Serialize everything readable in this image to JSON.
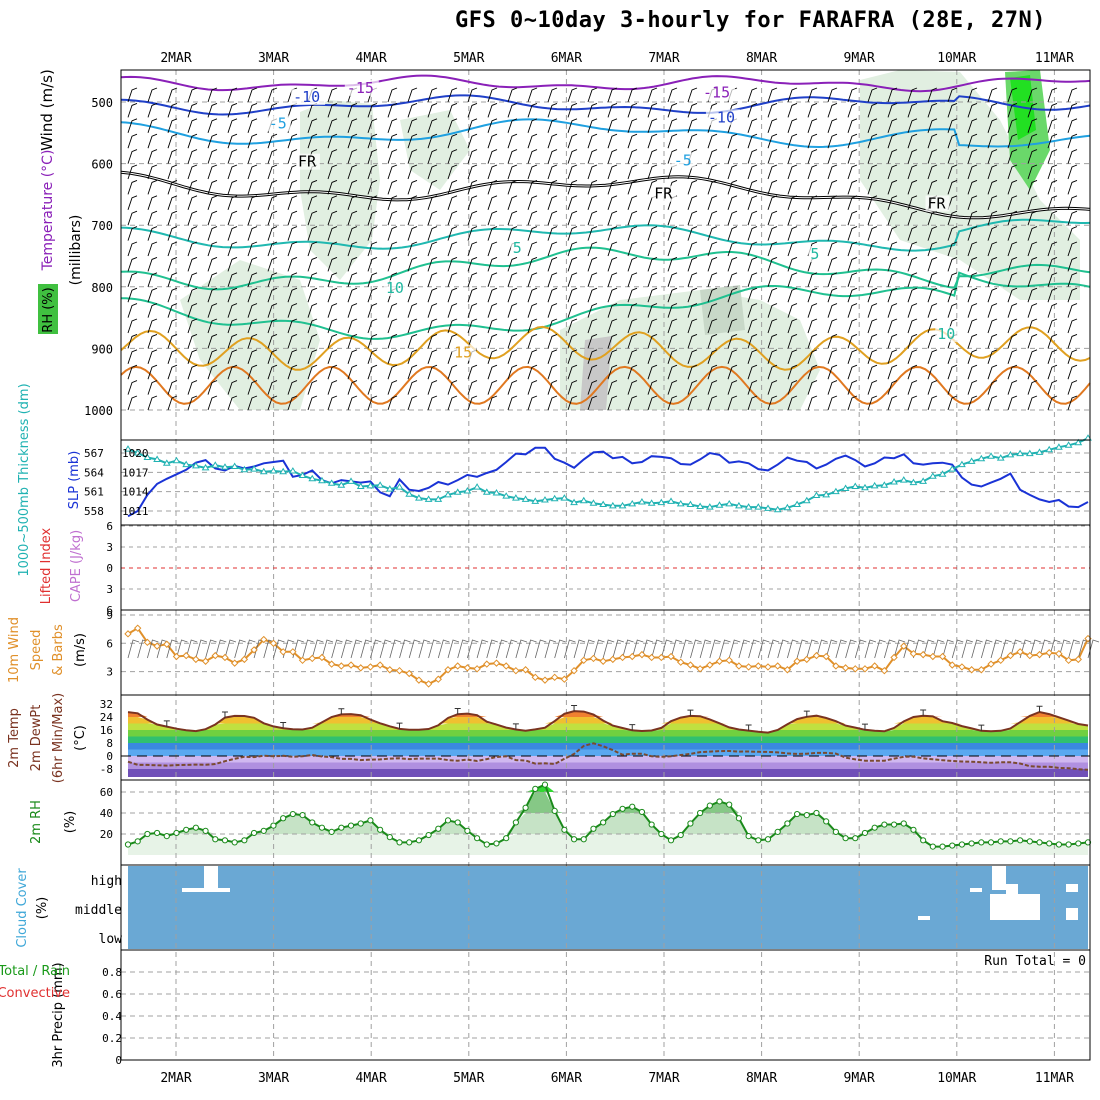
{
  "title": "GFS 0~10day 3-hourly for FARAFRA (28E, 27N)",
  "dates": [
    "2MAR",
    "3MAR",
    "4MAR",
    "5MAR",
    "6MAR",
    "7MAR",
    "8MAR",
    "9MAR",
    "10MAR",
    "11MAR"
  ],
  "run_total_label": "Run Total = 0",
  "colors": {
    "grid": "#a0a0a0",
    "slp": "#1a33d6",
    "thickness": "#20b2b2",
    "wind10": "#e0902a",
    "temp": "#7a3320",
    "dewpt": "#7a4a30",
    "rh": "#1a8a1a",
    "cloud": "#6aa8d4",
    "rh_fill": "#cde8cd",
    "zero_li": "#e03030"
  },
  "chart_data": [
    {
      "type": "contour",
      "panel": "upper_air",
      "ylabel_parts": [
        "Wind (m/s)",
        "Temperature (°C)",
        "RH (%)"
      ],
      "yunit": "(millibars)",
      "yticks": [
        500,
        600,
        700,
        800,
        900,
        1000
      ],
      "contour_labels": [
        {
          "text": "-15",
          "day": 1.75,
          "p": 485
        },
        {
          "text": "-15",
          "day": 5.4,
          "p": 493
        },
        {
          "text": "-10",
          "day": 1.2,
          "p": 500
        },
        {
          "text": "-10",
          "day": 5.45,
          "p": 533
        },
        {
          "text": "-5",
          "day": 0.95,
          "p": 543
        },
        {
          "text": "-5",
          "day": 5.1,
          "p": 603
        },
        {
          "text": "FR",
          "day": 1.25,
          "p": 605
        },
        {
          "text": "FR",
          "day": 4.9,
          "p": 657
        },
        {
          "text": "FR",
          "day": 7.7,
          "p": 673
        },
        {
          "text": "5",
          "day": 3.45,
          "p": 745
        },
        {
          "text": "5",
          "day": 6.5,
          "p": 755
        },
        {
          "text": "10",
          "day": 7.8,
          "p": 885
        },
        {
          "text": "10",
          "day": 2.15,
          "p": 810
        },
        {
          "text": "15",
          "day": 2.85,
          "p": 915
        }
      ]
    },
    {
      "type": "line",
      "panel": "slp_thickness",
      "ylabel_left": "1000~500mb Thickness (dm)",
      "ylabel_right": "SLP (mb)",
      "yticks_left": [
        558,
        561,
        564,
        567
      ],
      "yticks_right": [
        1011,
        1014,
        1017,
        1020
      ],
      "series": [
        {
          "name": "SLP (mb)",
          "values": [
            1010.2,
            1011,
            1013.5,
            1015.2,
            1016,
            1016.7,
            1017.4,
            1018.5,
            1018.9,
            1017.6,
            1017.3,
            1018,
            1017.6,
            1017.9,
            1018.4,
            1018.6,
            1018.8,
            1016.3,
            1016.6,
            1017.3,
            1015.8,
            1015.3,
            1015.8,
            1015.6,
            1015.4,
            1015.6,
            1013.9,
            1013.3,
            1015.9,
            1014.3,
            1014.1,
            1014.6,
            1015.5,
            1015.1,
            1015.8,
            1016.6,
            1016.3,
            1016.9,
            1017.4,
            1018.6,
            1019.9,
            1019.8,
            1020.8,
            1020.8,
            1019.1,
            1018.5,
            1017.7,
            1019,
            1020.1,
            1020.2,
            1019.2,
            1019.4,
            1018.4,
            1018.6,
            1019.5,
            1019.4,
            1019.2,
            1018.3,
            1018.2,
            1019,
            1020,
            1019.7,
            1018.5,
            1018.7,
            1018.4,
            1017.5,
            1017.3,
            1018.2,
            1019.3,
            1018.8,
            1018.6,
            1017.6,
            1018.2,
            1019.1,
            1019.6,
            1018.9,
            1017.9,
            1018.4,
            1019.3,
            1019.2,
            1019.8,
            1018.4,
            1018.2,
            1018.4,
            1018.5,
            1018.2,
            1016.2,
            1015.1,
            1014.8,
            1015.4,
            1016,
            1016.8,
            1014.3,
            1013.5,
            1012.8,
            1012.4,
            1012.7,
            1011.7,
            1011.6,
            1012.4
          ]
        },
        {
          "name": "1000~500mb Thickness (dm)",
          "values": [
            567.6,
            567,
            566.3,
            566,
            565.4,
            565.8,
            565.2,
            565,
            564.7,
            565.1,
            564.8,
            564.9,
            564.4,
            564.5,
            564.1,
            564.2,
            564.1,
            564.2,
            563.5,
            563,
            562.7,
            562.3,
            562,
            562.6,
            561.8,
            561.9,
            562,
            561.4,
            561.7,
            560.6,
            560,
            559.8,
            559.8,
            560.5,
            560.9,
            561.1,
            561.7,
            560.9,
            560.8,
            560.3,
            560,
            559.8,
            559.5,
            559.7,
            559.9,
            560,
            559.3,
            559.6,
            559.2,
            559,
            558.8,
            558.8,
            559.1,
            559.4,
            559.2,
            559.3,
            559.5,
            559.1,
            559,
            558.7,
            558.6,
            558.9,
            559.1,
            558.8,
            558.6,
            558.6,
            558.4,
            558.2,
            558.5,
            559,
            559.6,
            560.4,
            560.5,
            561,
            561.5,
            561.8,
            561.6,
            561.9,
            562,
            562.5,
            562.8,
            562.4,
            562.6,
            563.4,
            563.7,
            564.5,
            565.2,
            565.7,
            566.1,
            566.5,
            566.2,
            566.7,
            566.9,
            566.9,
            567.1,
            567.5,
            567.9,
            568.2,
            568.6,
            569.3
          ]
        }
      ]
    },
    {
      "type": "line",
      "panel": "stability",
      "ylabel_left": "Lifted Index",
      "ylabel_right": "CAPE (J/kg)",
      "yticks": [
        6,
        3,
        0,
        -3,
        -6
      ],
      "yticks_labels": [
        "6",
        "3",
        "0",
        "3",
        "6"
      ],
      "series": []
    },
    {
      "type": "line",
      "panel": "wind10m",
      "ylabel_parts": [
        "10m Wind",
        "Speed",
        "& Barbs",
        "(m/s)"
      ],
      "yticks": [
        3,
        6,
        9
      ],
      "series": [
        {
          "name": "10m Wind Speed",
          "values": [
            7,
            7.6,
            6.1,
            5.7,
            5.9,
            4.6,
            4.7,
            4.3,
            4.1,
            4.7,
            4.5,
            3.9,
            4.3,
            5.3,
            6.4,
            6,
            5.1,
            5.1,
            4.2,
            4.4,
            4.5,
            3.8,
            3.6,
            3.7,
            3.4,
            3.5,
            3.7,
            3.2,
            3.1,
            2.8,
            2.1,
            1.7,
            2.2,
            3.2,
            3.6,
            3.4,
            3.3,
            3.8,
            3.9,
            3.6,
            3.1,
            3.2,
            2.4,
            2.1,
            2.4,
            2.2,
            3.1,
            4.2,
            4.4,
            4.1,
            4.3,
            4.5,
            4.6,
            4.8,
            4.5,
            4.5,
            4.6,
            4,
            3.7,
            3.3,
            3.7,
            4.1,
            4.2,
            3.6,
            3.5,
            3.6,
            3.5,
            3.6,
            3.2,
            4.1,
            4.3,
            4.7,
            4.6,
            3.6,
            3.4,
            3.3,
            3.3,
            3.6,
            3.1,
            4.5,
            5.7,
            4.9,
            4.8,
            4.6,
            4.6,
            3.7,
            3.5,
            3.2,
            3.2,
            3.8,
            4.2,
            4.7,
            5.1,
            4.7,
            4.8,
            5,
            4.9,
            4.2,
            4.3,
            6.5
          ]
        }
      ]
    },
    {
      "type": "area",
      "panel": "temperature",
      "ylabel_parts": [
        "2m Temp",
        "2m DewPt",
        "(6hr Min/Max)"
      ],
      "ylabel_unit": "(°C)",
      "yticks": [
        -8,
        0,
        8,
        16,
        24,
        32
      ],
      "series": [
        {
          "name": "2m Temp",
          "values": [
            27,
            26.3,
            22.4,
            19.4,
            18.1,
            16.8,
            15.9,
            15.3,
            16.5,
            19.4,
            23.6,
            24.7,
            24.6,
            23.5,
            20.1,
            18.2,
            17.1,
            16.5,
            16.3,
            17.4,
            20.7,
            24,
            25.6,
            25.8,
            25.1,
            22.4,
            20.1,
            18.3,
            16.7,
            16.1,
            16.1,
            16.6,
            18.9,
            23.4,
            25.7,
            26.1,
            25.1,
            21.1,
            19.3,
            17.5,
            16.3,
            15.5,
            16.4,
            17.4,
            21.5,
            26,
            27.6,
            27.3,
            25.5,
            21.8,
            18.7,
            17.2,
            15.8,
            15.4,
            15.7,
            17.3,
            21.4,
            23.6,
            24.7,
            24.5,
            22.5,
            20.1,
            17.6,
            16.3,
            15.6,
            14.9,
            14.4,
            16,
            19.5,
            22.7,
            24.1,
            24.8,
            23.4,
            21.4,
            18.7,
            17.5,
            16.1,
            15.5,
            15.2,
            17.3,
            21.3,
            24,
            24.8,
            24.4,
            21.4,
            20.3,
            18.4,
            17,
            15.5,
            15.2,
            15.5,
            16.9,
            20.8,
            24.7,
            27.1,
            25.8,
            23.8,
            21.8,
            19.7,
            18.8
          ]
        },
        {
          "name": "2m DewPt",
          "values": [
            -3.5,
            -5.4,
            -5.5,
            -5.7,
            -5.9,
            -5.6,
            -5.5,
            -5.3,
            -5.4,
            -4.9,
            -3.2,
            -1.7,
            -0.5,
            -0.7,
            0.2,
            -0.2,
            0.1,
            -0.5,
            -0.1,
            0.6,
            -0.3,
            -0.7,
            -1.8,
            -1.8,
            -2.5,
            -2.2,
            -2.1,
            -1.6,
            -1.4,
            -1.9,
            -1.6,
            -1.6,
            -1.6,
            -2.5,
            -2.9,
            -2.2,
            -3.1,
            -1.9,
            -0.6,
            -0.1,
            -2.5,
            -2.8,
            -4.7,
            -4.5,
            -4.9,
            -1.7,
            1.3,
            6.2,
            7.8,
            6,
            3.6,
            0.8,
            1.4,
            1.4,
            -0.2,
            -0.5,
            -0.2,
            0.6,
            1.3,
            2.4,
            2.7,
            3,
            3.1,
            2.7,
            2.8,
            2.6,
            2.5,
            2.2,
            1.6,
            1.3,
            1.4,
            1.9,
            1.9,
            1.5,
            -1,
            -2.1,
            -2.9,
            -2.9,
            -2.9,
            -1.6,
            -0.5,
            -0.4,
            -1.5,
            -2,
            -2.6,
            -3.1,
            -3.4,
            -3.5,
            -3.8,
            -4.2,
            -3.9,
            -3.9,
            -4.6,
            -6.3,
            -6.6,
            -6.6,
            -7.3,
            -7.5,
            -8.1,
            -8.5
          ]
        }
      ]
    },
    {
      "type": "area",
      "panel": "rh2m",
      "ylabel": "2m RH",
      "yunit": "(%)",
      "yticks": [
        20,
        40,
        60
      ],
      "series": [
        {
          "name": "2m RH",
          "values": [
            10,
            13,
            20,
            21,
            18,
            21,
            24,
            26,
            23,
            15,
            14,
            12,
            14,
            21,
            23,
            28,
            35,
            39,
            38,
            31,
            26,
            22,
            26,
            28,
            30,
            33,
            24,
            17,
            12,
            12,
            14,
            19,
            25,
            33,
            31,
            23,
            16,
            10,
            11,
            16,
            31,
            45,
            63,
            67,
            42,
            24,
            15,
            15,
            25,
            31,
            39,
            44,
            46,
            41,
            29,
            20,
            14,
            19,
            30,
            40,
            47,
            51,
            48,
            35,
            18,
            14,
            15,
            22,
            30,
            39,
            38,
            40,
            32,
            22,
            16,
            16,
            21,
            26,
            29,
            29,
            30,
            24,
            14,
            8,
            8,
            9,
            10,
            11,
            12,
            12,
            13,
            13,
            14,
            13,
            12,
            11,
            10,
            10,
            11,
            12
          ]
        }
      ]
    },
    {
      "type": "heatmap",
      "panel": "cloud",
      "ylabel": "Cloud Cover",
      "yunit": "(%)",
      "levels": [
        "high",
        "middle",
        "low"
      ]
    },
    {
      "type": "bar",
      "panel": "precip",
      "ylabel_parts": [
        "3hr Precip (mm)",
        "Total / Rain",
        "Convective"
      ],
      "yticks": [
        0,
        0.2,
        0.4,
        0.6,
        0.8
      ],
      "ylim": [
        0,
        1
      ],
      "values": []
    }
  ]
}
